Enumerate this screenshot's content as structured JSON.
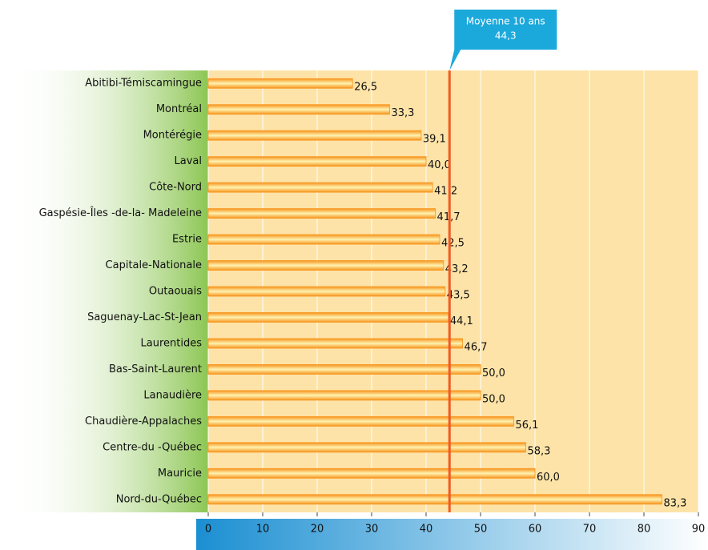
{
  "chart_data": {
    "type": "bar",
    "orientation": "horizontal",
    "categories": [
      "Abitibi-Témiscamingue",
      "Montréal",
      "Montérégie",
      "Laval",
      "Côte-Nord",
      "Gaspésie-Îles -de-la- Madeleine",
      "Estrie",
      "Capitale-Nationale",
      "Outaouais",
      "Saguenay-Lac-St-Jean",
      "Laurentides",
      "Bas-Saint-Laurent",
      "Lanaudière",
      "Chaudière-Appalaches",
      "Centre-du -Québec",
      "Mauricie",
      "Nord-du-Québec"
    ],
    "values": [
      26.5,
      33.3,
      39.1,
      40.0,
      41.2,
      41.7,
      42.5,
      43.2,
      43.5,
      44.1,
      46.7,
      50.0,
      50.0,
      56.1,
      58.3,
      60.0,
      83.3
    ],
    "value_labels": [
      "26,5",
      "33,3",
      "39,1",
      "40,0",
      "41,2",
      "41,7",
      "42,5",
      "43,2",
      "43,5",
      "44,1",
      "46,7",
      "50,0",
      "50,0",
      "56,1",
      "58,3",
      "60,0",
      "83,3"
    ],
    "color": "#f7941d",
    "xlim": [
      0,
      90
    ],
    "xticks": [
      0,
      10,
      20,
      30,
      40,
      50,
      60,
      70,
      80,
      90
    ],
    "grid": true,
    "reference_line": {
      "label": "Moyenne 10 ans",
      "value": 44.3,
      "value_label": "44,3",
      "color": "#f15a24"
    }
  }
}
